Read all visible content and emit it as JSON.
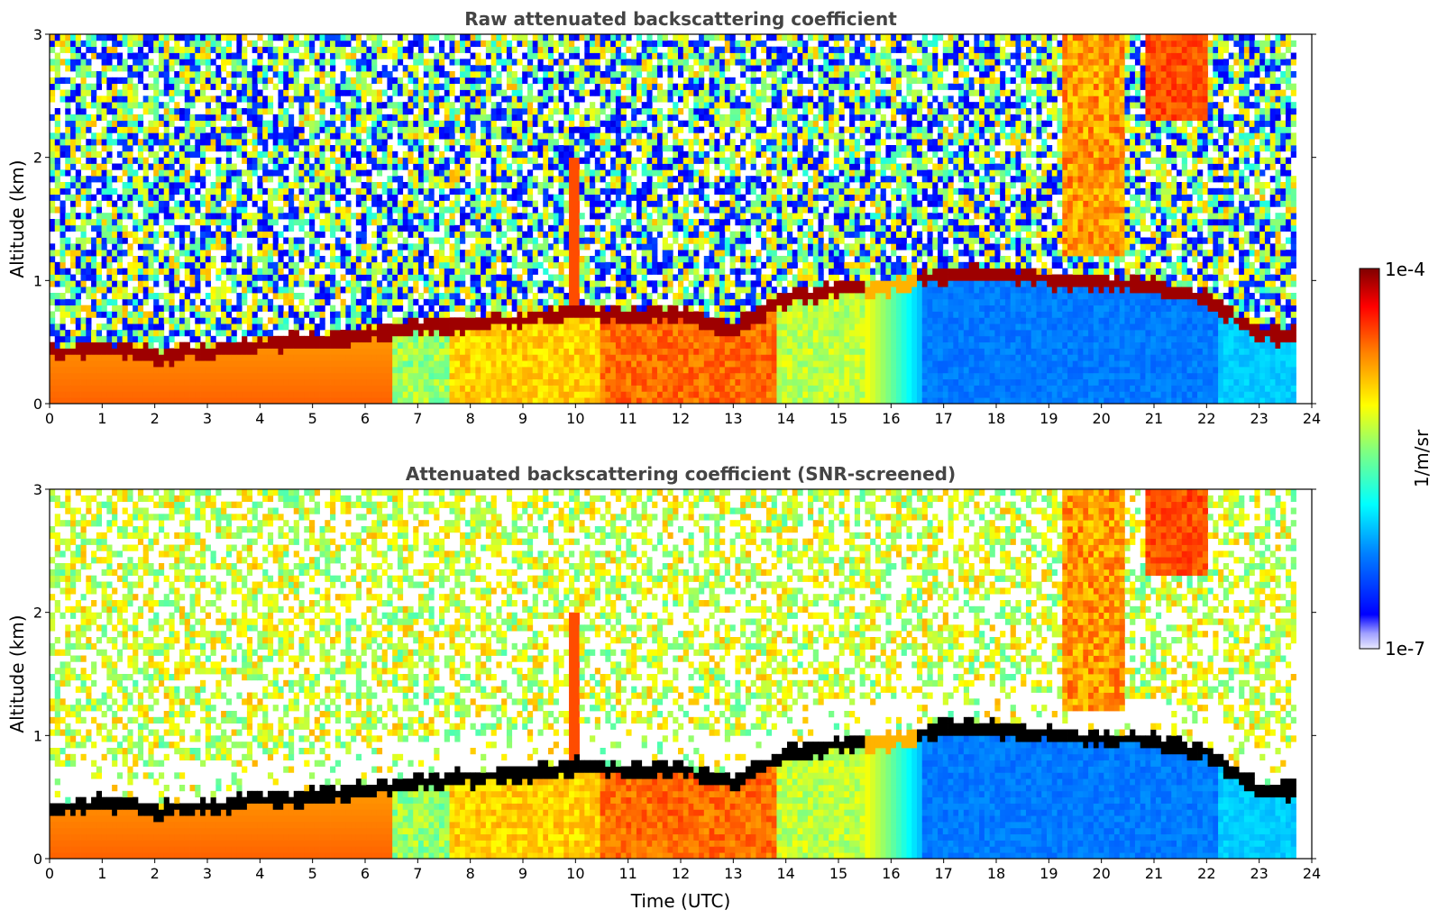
{
  "chart_data": [
    {
      "type": "heatmap",
      "title": "Raw attenuated backscattering coefficient",
      "xlabel": "",
      "ylabel": "Altitude (km)",
      "xlim": [
        0,
        24
      ],
      "ylim": [
        0,
        3
      ],
      "x_ticks": [
        "0",
        "1",
        "2",
        "3",
        "4",
        "5",
        "6",
        "7",
        "8",
        "9",
        "10",
        "11",
        "12",
        "13",
        "14",
        "15",
        "16",
        "17",
        "18",
        "19",
        "20",
        "21",
        "22",
        "23",
        "24"
      ],
      "y_ticks": [
        "0",
        "1",
        "2",
        "3"
      ],
      "data_end_hour": 23.7,
      "screened": false
    },
    {
      "type": "heatmap",
      "title": "Attenuated backscattering coefficient (SNR-screened)",
      "xlabel": "Time (UTC)",
      "ylabel": "Altitude (km)",
      "xlim": [
        0,
        24
      ],
      "ylim": [
        0,
        3
      ],
      "x_ticks": [
        "0",
        "1",
        "2",
        "3",
        "4",
        "5",
        "6",
        "7",
        "8",
        "9",
        "10",
        "11",
        "12",
        "13",
        "14",
        "15",
        "16",
        "17",
        "18",
        "19",
        "20",
        "21",
        "22",
        "23",
        "24"
      ],
      "y_ticks": [
        "0",
        "1",
        "2",
        "3"
      ],
      "data_end_hour": 23.7,
      "screened": true
    }
  ],
  "colorbar": {
    "label": "1/m/sr",
    "max_label": "1e-4",
    "min_label": "1e-7",
    "colormap": "jet"
  },
  "boundary_layer_top_km": [
    [
      0,
      0.4
    ],
    [
      1,
      0.45
    ],
    [
      2,
      0.38
    ],
    [
      3,
      0.42
    ],
    [
      4,
      0.48
    ],
    [
      5,
      0.5
    ],
    [
      6,
      0.55
    ],
    [
      7,
      0.62
    ],
    [
      8,
      0.65
    ],
    [
      9,
      0.68
    ],
    [
      10,
      0.75
    ],
    [
      11,
      0.7
    ],
    [
      12,
      0.72
    ],
    [
      13,
      0.6
    ],
    [
      14,
      0.85
    ],
    [
      15,
      0.92
    ],
    [
      16,
      0.95
    ],
    [
      17,
      1.05
    ],
    [
      18,
      1.05
    ],
    [
      19,
      1.0
    ],
    [
      20,
      0.97
    ],
    [
      21,
      0.95
    ],
    [
      22,
      0.85
    ],
    [
      23,
      0.55
    ],
    [
      23.7,
      0.55
    ]
  ],
  "colors": {
    "jet_stops": [
      "#00008f",
      "#0000ff",
      "#0080ff",
      "#00ffff",
      "#80ff80",
      "#ffff00",
      "#ff8000",
      "#ff0000",
      "#800000"
    ],
    "screened_mask": "#ffffff",
    "axis": "#000000"
  }
}
